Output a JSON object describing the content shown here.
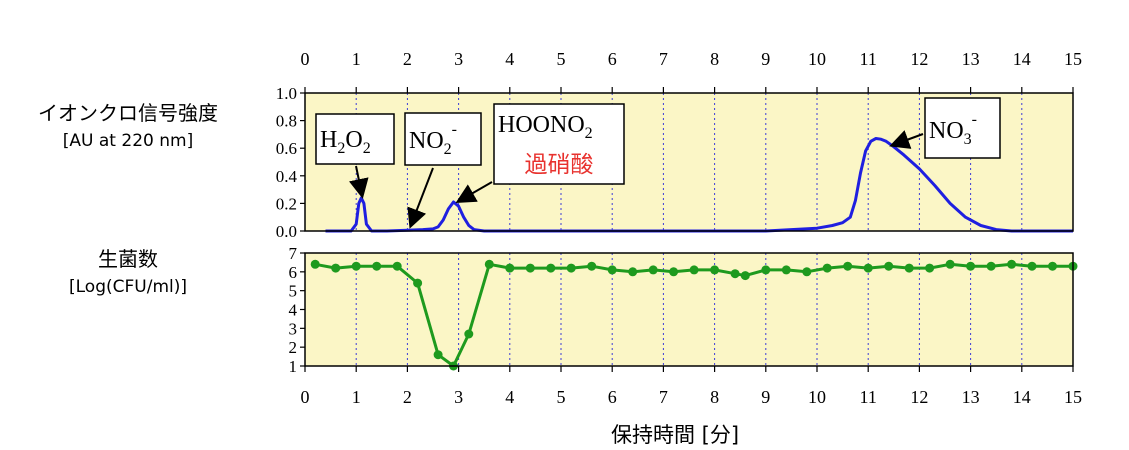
{
  "chart_data": [
    {
      "type": "line",
      "ylabel": "イオンクロ信号強度",
      "ylabel_unit": "[AU at 220 nm]",
      "ylim": [
        0,
        1.0
      ],
      "yticks": [
        "0.0",
        "0.2",
        "0.4",
        "0.6",
        "0.8",
        "1.0"
      ],
      "xlim": [
        0,
        15
      ],
      "xticks_top": [
        "0",
        "1",
        "2",
        "3",
        "4",
        "5",
        "6",
        "7",
        "8",
        "9",
        "10",
        "11",
        "12",
        "13",
        "14",
        "15"
      ],
      "series": [
        {
          "color": "#1f1fe0",
          "x": [
            0.4,
            0.9,
            1.0,
            1.05,
            1.1,
            1.15,
            1.2,
            1.3,
            1.6,
            2.0,
            2.3,
            2.5,
            2.6,
            2.7,
            2.8,
            2.9,
            3.0,
            3.1,
            3.2,
            3.3,
            3.5,
            4.0,
            5.0,
            6.0,
            7.0,
            8.0,
            9.0,
            9.5,
            10.0,
            10.3,
            10.5,
            10.65,
            10.75,
            10.85,
            10.95,
            11.05,
            11.15,
            11.25,
            11.35,
            11.5,
            11.7,
            12.0,
            12.3,
            12.6,
            12.9,
            13.2,
            13.5,
            13.8,
            14.0,
            15.0
          ],
          "y": [
            0.0,
            0.0,
            0.05,
            0.2,
            0.24,
            0.2,
            0.05,
            0.0,
            0.0,
            0.005,
            0.01,
            0.015,
            0.03,
            0.08,
            0.16,
            0.21,
            0.18,
            0.1,
            0.04,
            0.01,
            0.0,
            0.0,
            0.0,
            0.0,
            0.0,
            0.0,
            0.0,
            0.01,
            0.02,
            0.04,
            0.06,
            0.1,
            0.22,
            0.42,
            0.58,
            0.65,
            0.67,
            0.665,
            0.65,
            0.61,
            0.55,
            0.45,
            0.33,
            0.2,
            0.1,
            0.04,
            0.01,
            0.0,
            0.0,
            0.0
          ]
        }
      ],
      "annotations": [
        {
          "label": "H",
          "sub1": "2",
          "mid": "O",
          "sub2": "2",
          "target_x": 1.1,
          "target_y": 0.24
        },
        {
          "label": "NO",
          "sub": "2",
          "sup": "-",
          "target_x": 2.0,
          "target_y": 0.0
        },
        {
          "line1": "HOONO",
          "line1_sub": "2",
          "line2": "過硝酸",
          "target_x": 2.9,
          "target_y": 0.21
        },
        {
          "label": "NO",
          "sub": "3",
          "sup": "-",
          "target_x": 11.4,
          "target_y": 0.67
        }
      ]
    },
    {
      "type": "line",
      "ylabel": "生菌数",
      "ylabel_unit": "[Log(CFU/ml)]",
      "ylim": [
        1,
        7
      ],
      "yticks": [
        "1",
        "2",
        "3",
        "4",
        "5",
        "6",
        "7"
      ],
      "xlim": [
        0,
        15
      ],
      "xticks_bottom": [
        "0",
        "1",
        "2",
        "3",
        "4",
        "5",
        "6",
        "7",
        "8",
        "9",
        "10",
        "11",
        "12",
        "13",
        "14",
        "15"
      ],
      "xlabel": "保持時間 [分]",
      "series": [
        {
          "color": "#1e9a1e",
          "x": [
            0.2,
            0.6,
            1.0,
            1.4,
            1.8,
            2.2,
            2.6,
            2.9,
            3.2,
            3.6,
            4.0,
            4.4,
            4.8,
            5.2,
            5.6,
            6.0,
            6.4,
            6.8,
            7.2,
            7.6,
            8.0,
            8.4,
            8.6,
            9.0,
            9.4,
            9.8,
            10.2,
            10.6,
            11.0,
            11.4,
            11.8,
            12.2,
            12.6,
            13.0,
            13.4,
            13.8,
            14.2,
            14.6,
            15.0
          ],
          "y": [
            6.4,
            6.2,
            6.3,
            6.3,
            6.3,
            5.4,
            1.6,
            1.0,
            2.7,
            6.4,
            6.2,
            6.2,
            6.2,
            6.2,
            6.3,
            6.1,
            6.0,
            6.1,
            6.0,
            6.1,
            6.1,
            5.9,
            5.8,
            6.1,
            6.1,
            6.0,
            6.2,
            6.3,
            6.2,
            6.3,
            6.2,
            6.2,
            6.4,
            6.3,
            6.3,
            6.4,
            6.3,
            6.3,
            6.3
          ]
        }
      ]
    }
  ]
}
